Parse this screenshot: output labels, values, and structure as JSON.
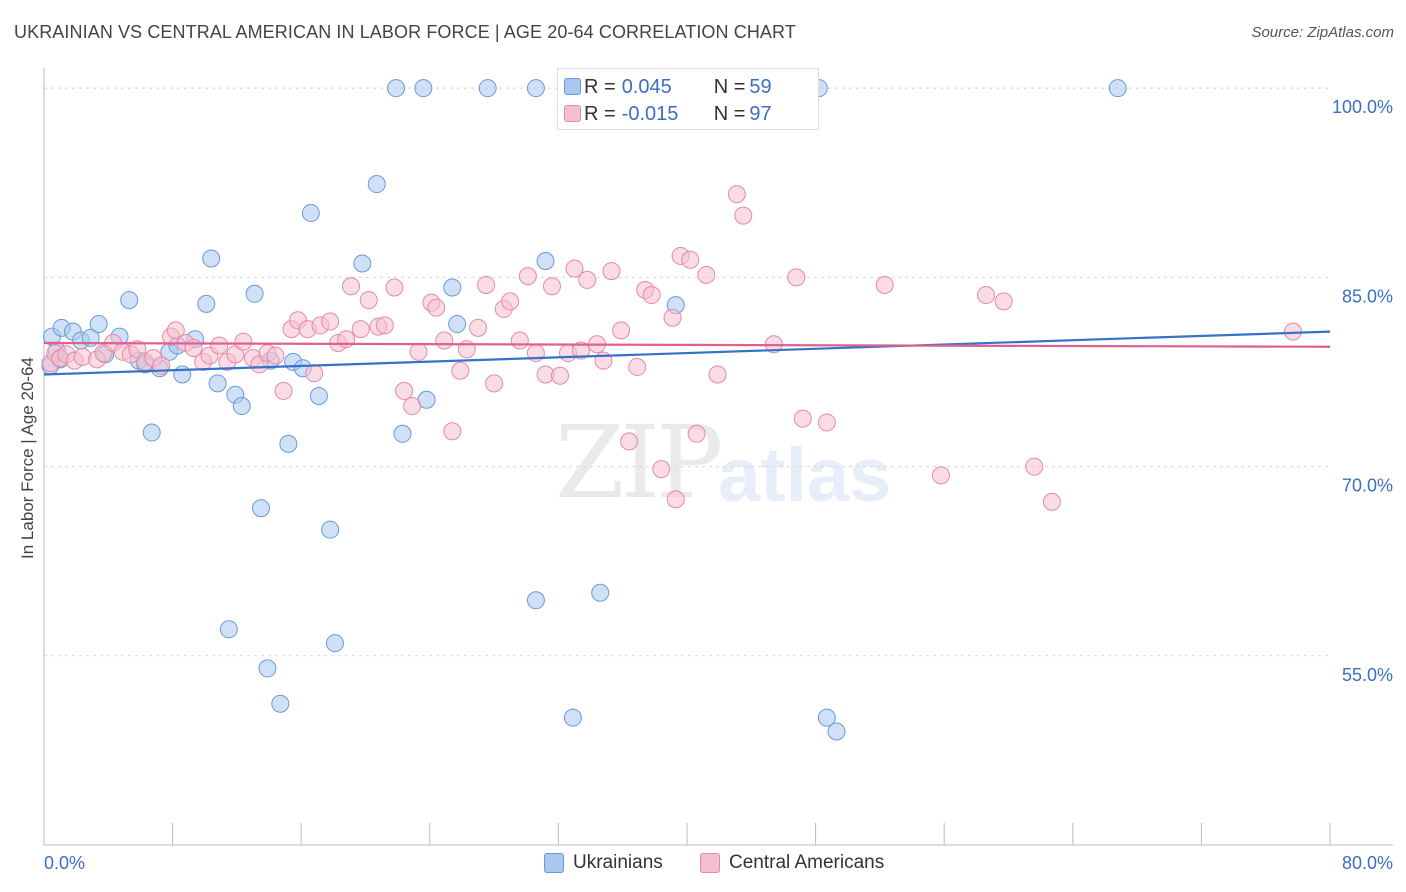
{
  "title": "UKRAINIAN VS CENTRAL AMERICAN IN LABOR FORCE | AGE 20-64 CORRELATION CHART",
  "source": "Source: ZipAtlas.com",
  "watermark": {
    "zip": "ZIP",
    "atlas": "atlas"
  },
  "stats": [
    {
      "r_label": "R = ",
      "r_value": "0.045",
      "n_label": "N = ",
      "n_value": "59",
      "color": "#a9c8f0",
      "stroke": "#6a9ad8"
    },
    {
      "r_label": "R = ",
      "r_value": "-0.015",
      "n_label": "N = ",
      "n_value": "97",
      "color": "#f6bfd0",
      "stroke": "#e58aa8"
    }
  ],
  "legend": [
    {
      "label": "Ukrainians",
      "color": "#a9c8f0",
      "stroke": "#6a9ad8"
    },
    {
      "label": "Central Americans",
      "color": "#f6bfd0",
      "stroke": "#e58aa8"
    }
  ],
  "chart_data": {
    "type": "scatter",
    "title": "UKRAINIAN VS CENTRAL AMERICAN IN LABOR FORCE | AGE 20-64 CORRELATION CHART",
    "xlabel": "",
    "ylabel": "In Labor Force | Age 20-64",
    "xlim": [
      0,
      80
    ],
    "ylim": [
      40,
      101.6
    ],
    "x_ticks": [
      "0.0%",
      "80.0%"
    ],
    "y_ticks": [
      {
        "value": 55,
        "label": "55.0%"
      },
      {
        "value": 70,
        "label": "70.0%"
      },
      {
        "value": 85,
        "label": "85.0%"
      },
      {
        "value": 100,
        "label": "100.0%"
      }
    ],
    "grid": true,
    "legend_position": "bottom",
    "series": [
      {
        "name": "Ukrainians",
        "color": "#a9c8f0",
        "stroke": "#6a9ad8",
        "line_color": "#3672c8",
        "trend": {
          "x": [
            0,
            80
          ],
          "y": [
            77.3,
            80.7
          ]
        },
        "points": [
          [
            0.5,
            80.3
          ],
          [
            0.8,
            79.2
          ],
          [
            1.1,
            81.0
          ],
          [
            1.8,
            80.7
          ],
          [
            2.3,
            80.0
          ],
          [
            2.9,
            80.2
          ],
          [
            3.4,
            81.3
          ],
          [
            3.8,
            78.9
          ],
          [
            4.7,
            80.3
          ],
          [
            5.3,
            83.2
          ],
          [
            5.9,
            78.4
          ],
          [
            6.3,
            78.1
          ],
          [
            6.7,
            72.7
          ],
          [
            7.2,
            77.8
          ],
          [
            7.8,
            79.1
          ],
          [
            8.3,
            79.6
          ],
          [
            8.6,
            77.3
          ],
          [
            9.4,
            80.1
          ],
          [
            10.1,
            82.9
          ],
          [
            10.4,
            86.5
          ],
          [
            10.8,
            76.6
          ],
          [
            11.5,
            57.1
          ],
          [
            11.9,
            75.7
          ],
          [
            12.3,
            74.8
          ],
          [
            13.1,
            83.7
          ],
          [
            13.5,
            66.7
          ],
          [
            13.9,
            54.0
          ],
          [
            14.1,
            78.4
          ],
          [
            14.7,
            51.2
          ],
          [
            15.2,
            71.8
          ],
          [
            15.5,
            78.3
          ],
          [
            16.1,
            77.8
          ],
          [
            16.6,
            90.1
          ],
          [
            17.1,
            75.6
          ],
          [
            17.8,
            65.0
          ],
          [
            18.1,
            56.0
          ],
          [
            19.8,
            86.1
          ],
          [
            20.7,
            92.4
          ],
          [
            21.9,
            100.0
          ],
          [
            22.3,
            72.6
          ],
          [
            23.6,
            100.0
          ],
          [
            23.8,
            75.3
          ],
          [
            25.4,
            84.2
          ],
          [
            25.7,
            81.3
          ],
          [
            27.6,
            100.0
          ],
          [
            30.6,
            100.0
          ],
          [
            30.6,
            59.4
          ],
          [
            31.2,
            86.3
          ],
          [
            32.9,
            50.1
          ],
          [
            34.6,
            60.0
          ],
          [
            36.4,
            100.0
          ],
          [
            38.7,
            100.0
          ],
          [
            39.3,
            82.8
          ],
          [
            48.2,
            100.0
          ],
          [
            48.7,
            50.1
          ],
          [
            49.3,
            49.0
          ],
          [
            66.8,
            100.0
          ],
          [
            1.0,
            78.5
          ],
          [
            0.4,
            78.0
          ]
        ]
      },
      {
        "name": "Central Americans",
        "color": "#f6bfd0",
        "stroke": "#e58aa8",
        "line_color": "#e0608c",
        "trend": {
          "x": [
            0,
            80
          ],
          "y": [
            79.8,
            79.5
          ]
        },
        "points": [
          [
            0.4,
            78.2
          ],
          [
            0.7,
            79.0
          ],
          [
            1.0,
            78.6
          ],
          [
            1.4,
            78.9
          ],
          [
            1.9,
            78.4
          ],
          [
            2.4,
            78.7
          ],
          [
            3.3,
            78.5
          ],
          [
            3.7,
            79.0
          ],
          [
            4.3,
            79.8
          ],
          [
            4.9,
            79.1
          ],
          [
            5.4,
            78.9
          ],
          [
            5.8,
            79.3
          ],
          [
            6.3,
            78.3
          ],
          [
            6.8,
            78.6
          ],
          [
            7.3,
            78.0
          ],
          [
            7.9,
            80.3
          ],
          [
            8.2,
            80.8
          ],
          [
            8.8,
            79.8
          ],
          [
            9.3,
            79.4
          ],
          [
            9.9,
            78.3
          ],
          [
            10.3,
            78.8
          ],
          [
            10.9,
            79.6
          ],
          [
            11.4,
            78.3
          ],
          [
            11.9,
            78.9
          ],
          [
            12.4,
            79.9
          ],
          [
            13.0,
            78.6
          ],
          [
            13.4,
            78.1
          ],
          [
            13.9,
            79.0
          ],
          [
            14.4,
            78.8
          ],
          [
            14.9,
            76.0
          ],
          [
            15.4,
            80.9
          ],
          [
            15.8,
            81.6
          ],
          [
            16.4,
            80.9
          ],
          [
            16.8,
            77.4
          ],
          [
            17.2,
            81.2
          ],
          [
            17.8,
            81.5
          ],
          [
            18.3,
            79.8
          ],
          [
            18.8,
            80.1
          ],
          [
            19.1,
            84.3
          ],
          [
            19.7,
            80.9
          ],
          [
            20.2,
            83.2
          ],
          [
            20.8,
            81.1
          ],
          [
            21.2,
            81.2
          ],
          [
            21.8,
            84.2
          ],
          [
            22.4,
            76.0
          ],
          [
            22.9,
            74.8
          ],
          [
            23.3,
            79.1
          ],
          [
            24.1,
            83.0
          ],
          [
            24.4,
            82.6
          ],
          [
            24.9,
            80.0
          ],
          [
            25.4,
            72.8
          ],
          [
            25.9,
            77.6
          ],
          [
            26.3,
            79.3
          ],
          [
            27.0,
            81.0
          ],
          [
            27.5,
            84.4
          ],
          [
            28.0,
            76.6
          ],
          [
            28.6,
            82.5
          ],
          [
            29.0,
            83.1
          ],
          [
            29.6,
            80.0
          ],
          [
            30.1,
            85.1
          ],
          [
            30.6,
            79.0
          ],
          [
            31.2,
            77.3
          ],
          [
            31.6,
            84.3
          ],
          [
            32.1,
            77.2
          ],
          [
            32.6,
            79.0
          ],
          [
            33.0,
            85.7
          ],
          [
            33.4,
            79.2
          ],
          [
            33.8,
            84.8
          ],
          [
            34.4,
            79.7
          ],
          [
            34.8,
            78.4
          ],
          [
            35.3,
            85.5
          ],
          [
            35.9,
            80.8
          ],
          [
            36.4,
            72.0
          ],
          [
            36.9,
            77.9
          ],
          [
            37.4,
            84.0
          ],
          [
            37.8,
            83.6
          ],
          [
            38.4,
            69.8
          ],
          [
            39.1,
            81.8
          ],
          [
            39.6,
            86.7
          ],
          [
            40.2,
            86.4
          ],
          [
            40.6,
            72.6
          ],
          [
            41.2,
            85.2
          ],
          [
            41.9,
            77.3
          ],
          [
            43.1,
            91.6
          ],
          [
            43.5,
            89.9
          ],
          [
            45.4,
            79.7
          ],
          [
            46.8,
            85.0
          ],
          [
            47.2,
            73.8
          ],
          [
            48.7,
            73.5
          ],
          [
            52.3,
            84.4
          ],
          [
            55.8,
            69.3
          ],
          [
            58.6,
            83.6
          ],
          [
            59.7,
            83.1
          ],
          [
            61.6,
            70.0
          ],
          [
            62.7,
            67.2
          ],
          [
            39.3,
            67.4
          ],
          [
            77.7,
            80.7
          ]
        ]
      }
    ]
  }
}
